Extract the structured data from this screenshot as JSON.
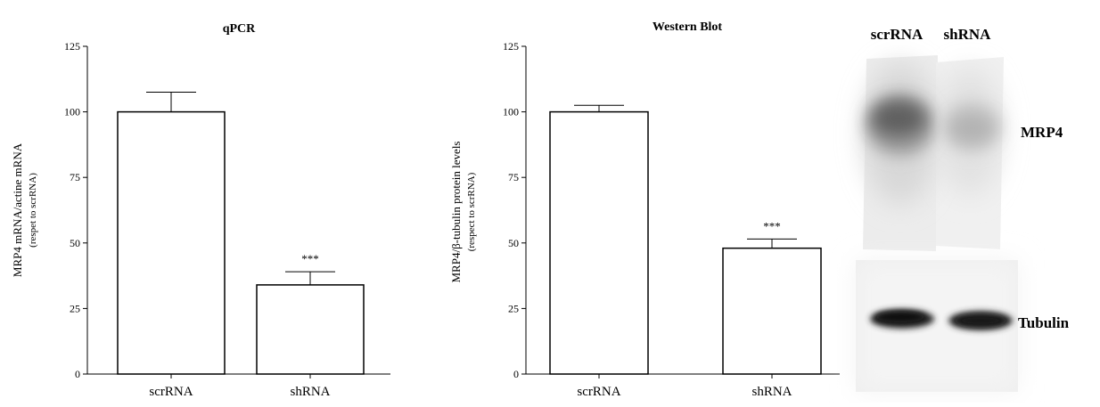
{
  "chart_data": [
    {
      "type": "bar",
      "title": "qPCR",
      "categories": [
        "scrRNA",
        "shRNA"
      ],
      "values": [
        100,
        34
      ],
      "errors": [
        7.5,
        5
      ],
      "annotations": [
        "",
        "***"
      ],
      "ylabel_line1": "MRP4 mRNA/actine mRNA",
      "ylabel_line2": "(respet to scrRNA)",
      "xlabel": "",
      "ylim": [
        0,
        125
      ],
      "yticks": [
        0,
        25,
        50,
        75,
        100,
        125
      ],
      "grid": false,
      "legend": "none"
    },
    {
      "type": "bar",
      "title": "Western Blot",
      "categories": [
        "scrRNA",
        "shRNA"
      ],
      "values": [
        100,
        48
      ],
      "errors": [
        2.5,
        3.5
      ],
      "annotations": [
        "",
        "***"
      ],
      "ylabel_line1": "MRP4/β-tubulin protein levels",
      "ylabel_line2": "(respect to scrRNA)",
      "xlabel": "",
      "ylim": [
        0,
        125
      ],
      "yticks": [
        0,
        25,
        50,
        75,
        100,
        125
      ],
      "grid": false,
      "legend": "none"
    }
  ],
  "blot": {
    "lane_labels": [
      "scrRNA",
      "shRNA"
    ],
    "band_labels": [
      "MRP4",
      "Tubulin"
    ]
  }
}
